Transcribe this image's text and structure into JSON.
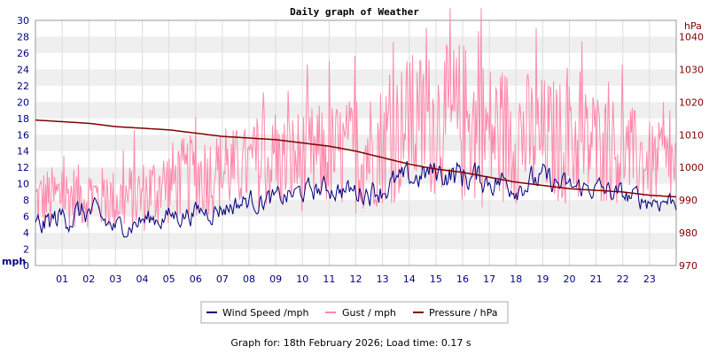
{
  "chart_data": {
    "type": "line",
    "title": "Daily graph of Weather",
    "x_ticks": [
      "01",
      "02",
      "03",
      "04",
      "05",
      "06",
      "07",
      "08",
      "09",
      "10",
      "11",
      "12",
      "13",
      "14",
      "15",
      "16",
      "17",
      "18",
      "19",
      "20",
      "21",
      "22",
      "23"
    ],
    "xlim": [
      0,
      24
    ],
    "left_axis": {
      "label": "mph",
      "ylim": [
        0,
        30
      ],
      "ticks": [
        0,
        2,
        4,
        6,
        8,
        10,
        12,
        14,
        16,
        18,
        20,
        22,
        24,
        26,
        28,
        30
      ]
    },
    "right_axis": {
      "label": "hPa",
      "ylim": [
        970,
        1045
      ],
      "ticks": [
        970,
        980,
        990,
        1000,
        1010,
        1020,
        1030,
        1040
      ]
    },
    "grid": true,
    "legend_placement": "bottom",
    "series": [
      {
        "name": "Wind Speed /mph",
        "axis": "left",
        "color": "#000080",
        "x": [
          0,
          1,
          2,
          3,
          4,
          5,
          6,
          7,
          8,
          9,
          10,
          11,
          12,
          13,
          14,
          15,
          16,
          17,
          18,
          19,
          20,
          21,
          22,
          23,
          24
        ],
        "values": [
          4.5,
          6,
          6.5,
          4.5,
          5.5,
          6,
          6.5,
          7,
          8,
          8,
          9,
          9.5,
          9,
          9.5,
          10.5,
          11.5,
          11,
          10.5,
          10,
          10.5,
          9.5,
          9.5,
          8.5,
          8,
          8
        ],
        "amplitude": [
          1.5,
          1.5,
          1.5,
          1.2,
          1.2,
          1.2,
          1.2,
          1.2,
          1.2,
          1.2,
          1.2,
          1.2,
          1.3,
          1.5,
          1.5,
          1.5,
          1.8,
          1.5,
          1.5,
          1.5,
          1.2,
          1.2,
          1.2,
          1.2,
          1.2
        ]
      },
      {
        "name": "Gust / mph",
        "axis": "left",
        "color": "#ff88aa",
        "x": [
          0,
          1,
          2,
          3,
          4,
          5,
          6,
          7,
          8,
          9,
          10,
          11,
          12,
          13,
          14,
          15,
          16,
          17,
          18,
          19,
          20,
          21,
          22,
          23,
          24
        ],
        "values": [
          8,
          8.5,
          8.5,
          8,
          8.5,
          10,
          11,
          11.5,
          12,
          12.5,
          13,
          13.5,
          13.5,
          15,
          17,
          17.5,
          17.5,
          16,
          16,
          15.5,
          15,
          14.5,
          14,
          12.5,
          12
        ],
        "amplitude": [
          3,
          3,
          3,
          3,
          3.5,
          4,
          4,
          4,
          4,
          4.5,
          5,
          5,
          5.5,
          6,
          7,
          7,
          8,
          7,
          6.5,
          6,
          6,
          5.5,
          5,
          4,
          4
        ],
        "peak": {
          "x": 16.7,
          "y": 32
        }
      },
      {
        "name": "Pressure / hPa",
        "axis": "right",
        "color": "#800000",
        "x": [
          0,
          1,
          2,
          3,
          4,
          5,
          6,
          7,
          8,
          9,
          10,
          11,
          12,
          13,
          14,
          15,
          16,
          17,
          18,
          19,
          20,
          21,
          22,
          23,
          24
        ],
        "values": [
          1014.5,
          1014,
          1013.5,
          1012.5,
          1012,
          1011.5,
          1010.5,
          1009.5,
          1009,
          1008.5,
          1007.5,
          1006.5,
          1005,
          1003,
          1001,
          999.5,
          998.5,
          997,
          995.5,
          994.5,
          993.5,
          993,
          992.5,
          991.5,
          991
        ]
      }
    ]
  },
  "footer": {
    "text": "Graph for: 18th February 2026; Load time: 0.17 s"
  }
}
